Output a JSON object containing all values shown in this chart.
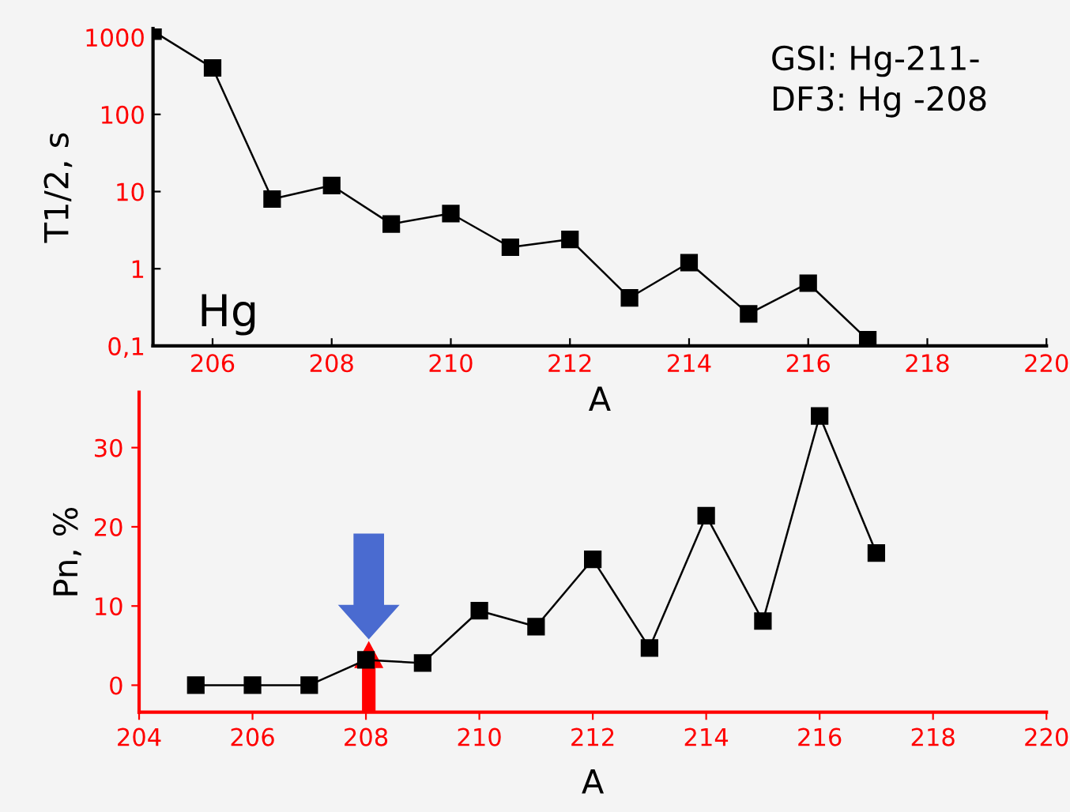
{
  "chart_data": [
    {
      "type": "line",
      "x": [
        205,
        206,
        207,
        208,
        209,
        210,
        211,
        212,
        213,
        214,
        215,
        216,
        217
      ],
      "series": [
        {
          "color": "#000000",
          "values": [
            1200,
            400,
            8,
            12,
            3.8,
            5.2,
            1.9,
            2.4,
            0.42,
            1.2,
            0.26,
            0.65,
            0.12
          ]
        }
      ],
      "log": "y",
      "ylabel": "T1/2, s",
      "xlabel": "A",
      "xlim": [
        205,
        220
      ],
      "xticks": [
        206,
        208,
        210,
        212,
        214,
        216,
        218,
        220
      ],
      "ylim": [
        0.1,
        1300
      ],
      "yticks": [
        {
          "value": 0.1,
          "label": "0,1"
        },
        1,
        10,
        100,
        1000
      ],
      "marker": "square",
      "line_style": "solid",
      "grid": false,
      "legend": false,
      "annotations": [
        "Hg",
        "GSI: Hg-211-",
        "DF3: Hg -208"
      ]
    },
    {
      "type": "line",
      "x": [
        205,
        206,
        207,
        208,
        209,
        210,
        211,
        212,
        213,
        214,
        215,
        216,
        217
      ],
      "series": [
        {
          "color": "#000000",
          "values": [
            0,
            0,
            0,
            3.2,
            2.8,
            9.4,
            7.4,
            15.9,
            4.7,
            21.4,
            8.1,
            34,
            16.7
          ]
        }
      ],
      "ylabel": "Pn, %",
      "xlabel": "A",
      "xlim": [
        204,
        220
      ],
      "xticks": [
        204,
        206,
        208,
        210,
        212,
        214,
        216,
        218,
        220
      ],
      "ylim": [
        -3.4,
        37
      ],
      "yticks": [
        0,
        10,
        20,
        30
      ],
      "marker": "square",
      "line_style": "solid",
      "grid": false,
      "legend": false
    }
  ]
}
